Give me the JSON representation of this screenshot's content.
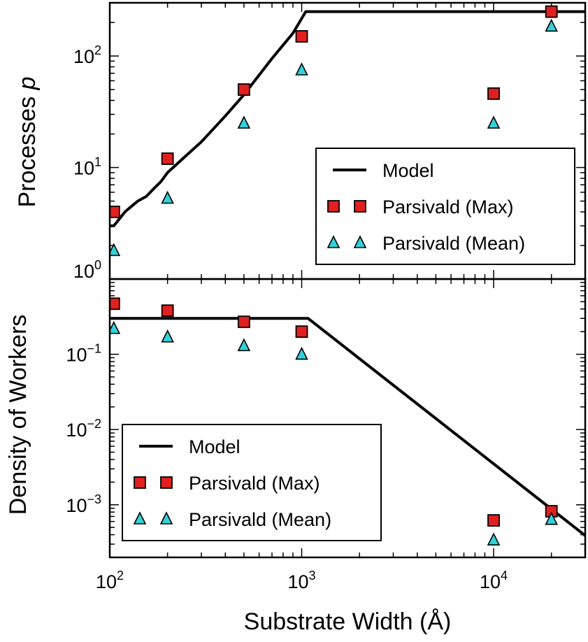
{
  "colors": {
    "model_line": "#000000",
    "max_marker": "#e02020",
    "mean_marker": "#33d1d9"
  },
  "icons": {
    "max_marker": "square-marker",
    "mean_marker": "triangle-marker"
  },
  "chart_data": [
    {
      "type": "scatter",
      "ylabel_text": "Processes ",
      "ylabel_var": "p",
      "xscale": "log",
      "yscale": "log",
      "xlim": [
        100,
        30000
      ],
      "ylim": [
        1,
        300
      ],
      "yticks": [
        {
          "value": 1,
          "base": "10",
          "exp": "0"
        },
        {
          "value": 10,
          "base": "10",
          "exp": "1"
        },
        {
          "value": 100,
          "base": "10",
          "exp": "2"
        }
      ],
      "legend_position": "lower-right",
      "series": [
        {
          "name": "Model",
          "kind": "line",
          "x": [
            100,
            105,
            120,
            130,
            140,
            155,
            170,
            185,
            200,
            240,
            300,
            400,
            500,
            700,
            900,
            1050,
            30000
          ],
          "y": [
            3,
            3,
            4,
            4.5,
            5,
            5.5,
            6.5,
            7.5,
            9,
            12,
            17,
            29,
            45,
            95,
            160,
            250,
            250
          ]
        },
        {
          "name": "Parsivald (Max)",
          "kind": "square",
          "x": [
            105,
            200,
            500,
            1000,
            10000,
            20000
          ],
          "y": [
            4,
            12,
            50,
            150,
            46,
            250
          ]
        },
        {
          "name": "Parsivald (Mean)",
          "kind": "triangle",
          "x": [
            105,
            200,
            500,
            1000,
            10000,
            20000
          ],
          "y": [
            1.8,
            5.3,
            25,
            75,
            25,
            185
          ]
        }
      ]
    },
    {
      "type": "scatter",
      "ylabel_text": "Density of Workers",
      "xlabel": "Substrate Width (Å)",
      "xscale": "log",
      "yscale": "log",
      "xlim": [
        100,
        30000
      ],
      "ylim": [
        0.0002,
        1
      ],
      "xticks": [
        {
          "value": 100,
          "base": "10",
          "exp": "2"
        },
        {
          "value": 1000,
          "base": "10",
          "exp": "3"
        },
        {
          "value": 10000,
          "base": "10",
          "exp": "4"
        }
      ],
      "yticks": [
        {
          "value": 0.1,
          "base": "10",
          "exp": "−1"
        },
        {
          "value": 0.01,
          "base": "10",
          "exp": "−2"
        },
        {
          "value": 0.001,
          "base": "10",
          "exp": "−3"
        }
      ],
      "legend_position": "lower-left",
      "series": [
        {
          "name": "Model",
          "kind": "line",
          "x": [
            100,
            1080,
            30000
          ],
          "y": [
            0.3,
            0.3,
            0.00039
          ]
        },
        {
          "name": "Parsivald (Max)",
          "kind": "square",
          "x": [
            105,
            200,
            500,
            1000,
            10000,
            20000
          ],
          "y": [
            0.47,
            0.38,
            0.27,
            0.2,
            0.00062,
            0.00082
          ]
        },
        {
          "name": "Parsivald (Mean)",
          "kind": "triangle",
          "x": [
            105,
            200,
            500,
            1000,
            10000,
            20000
          ],
          "y": [
            0.22,
            0.17,
            0.13,
            0.1,
            0.00034,
            0.00064
          ]
        }
      ]
    }
  ]
}
